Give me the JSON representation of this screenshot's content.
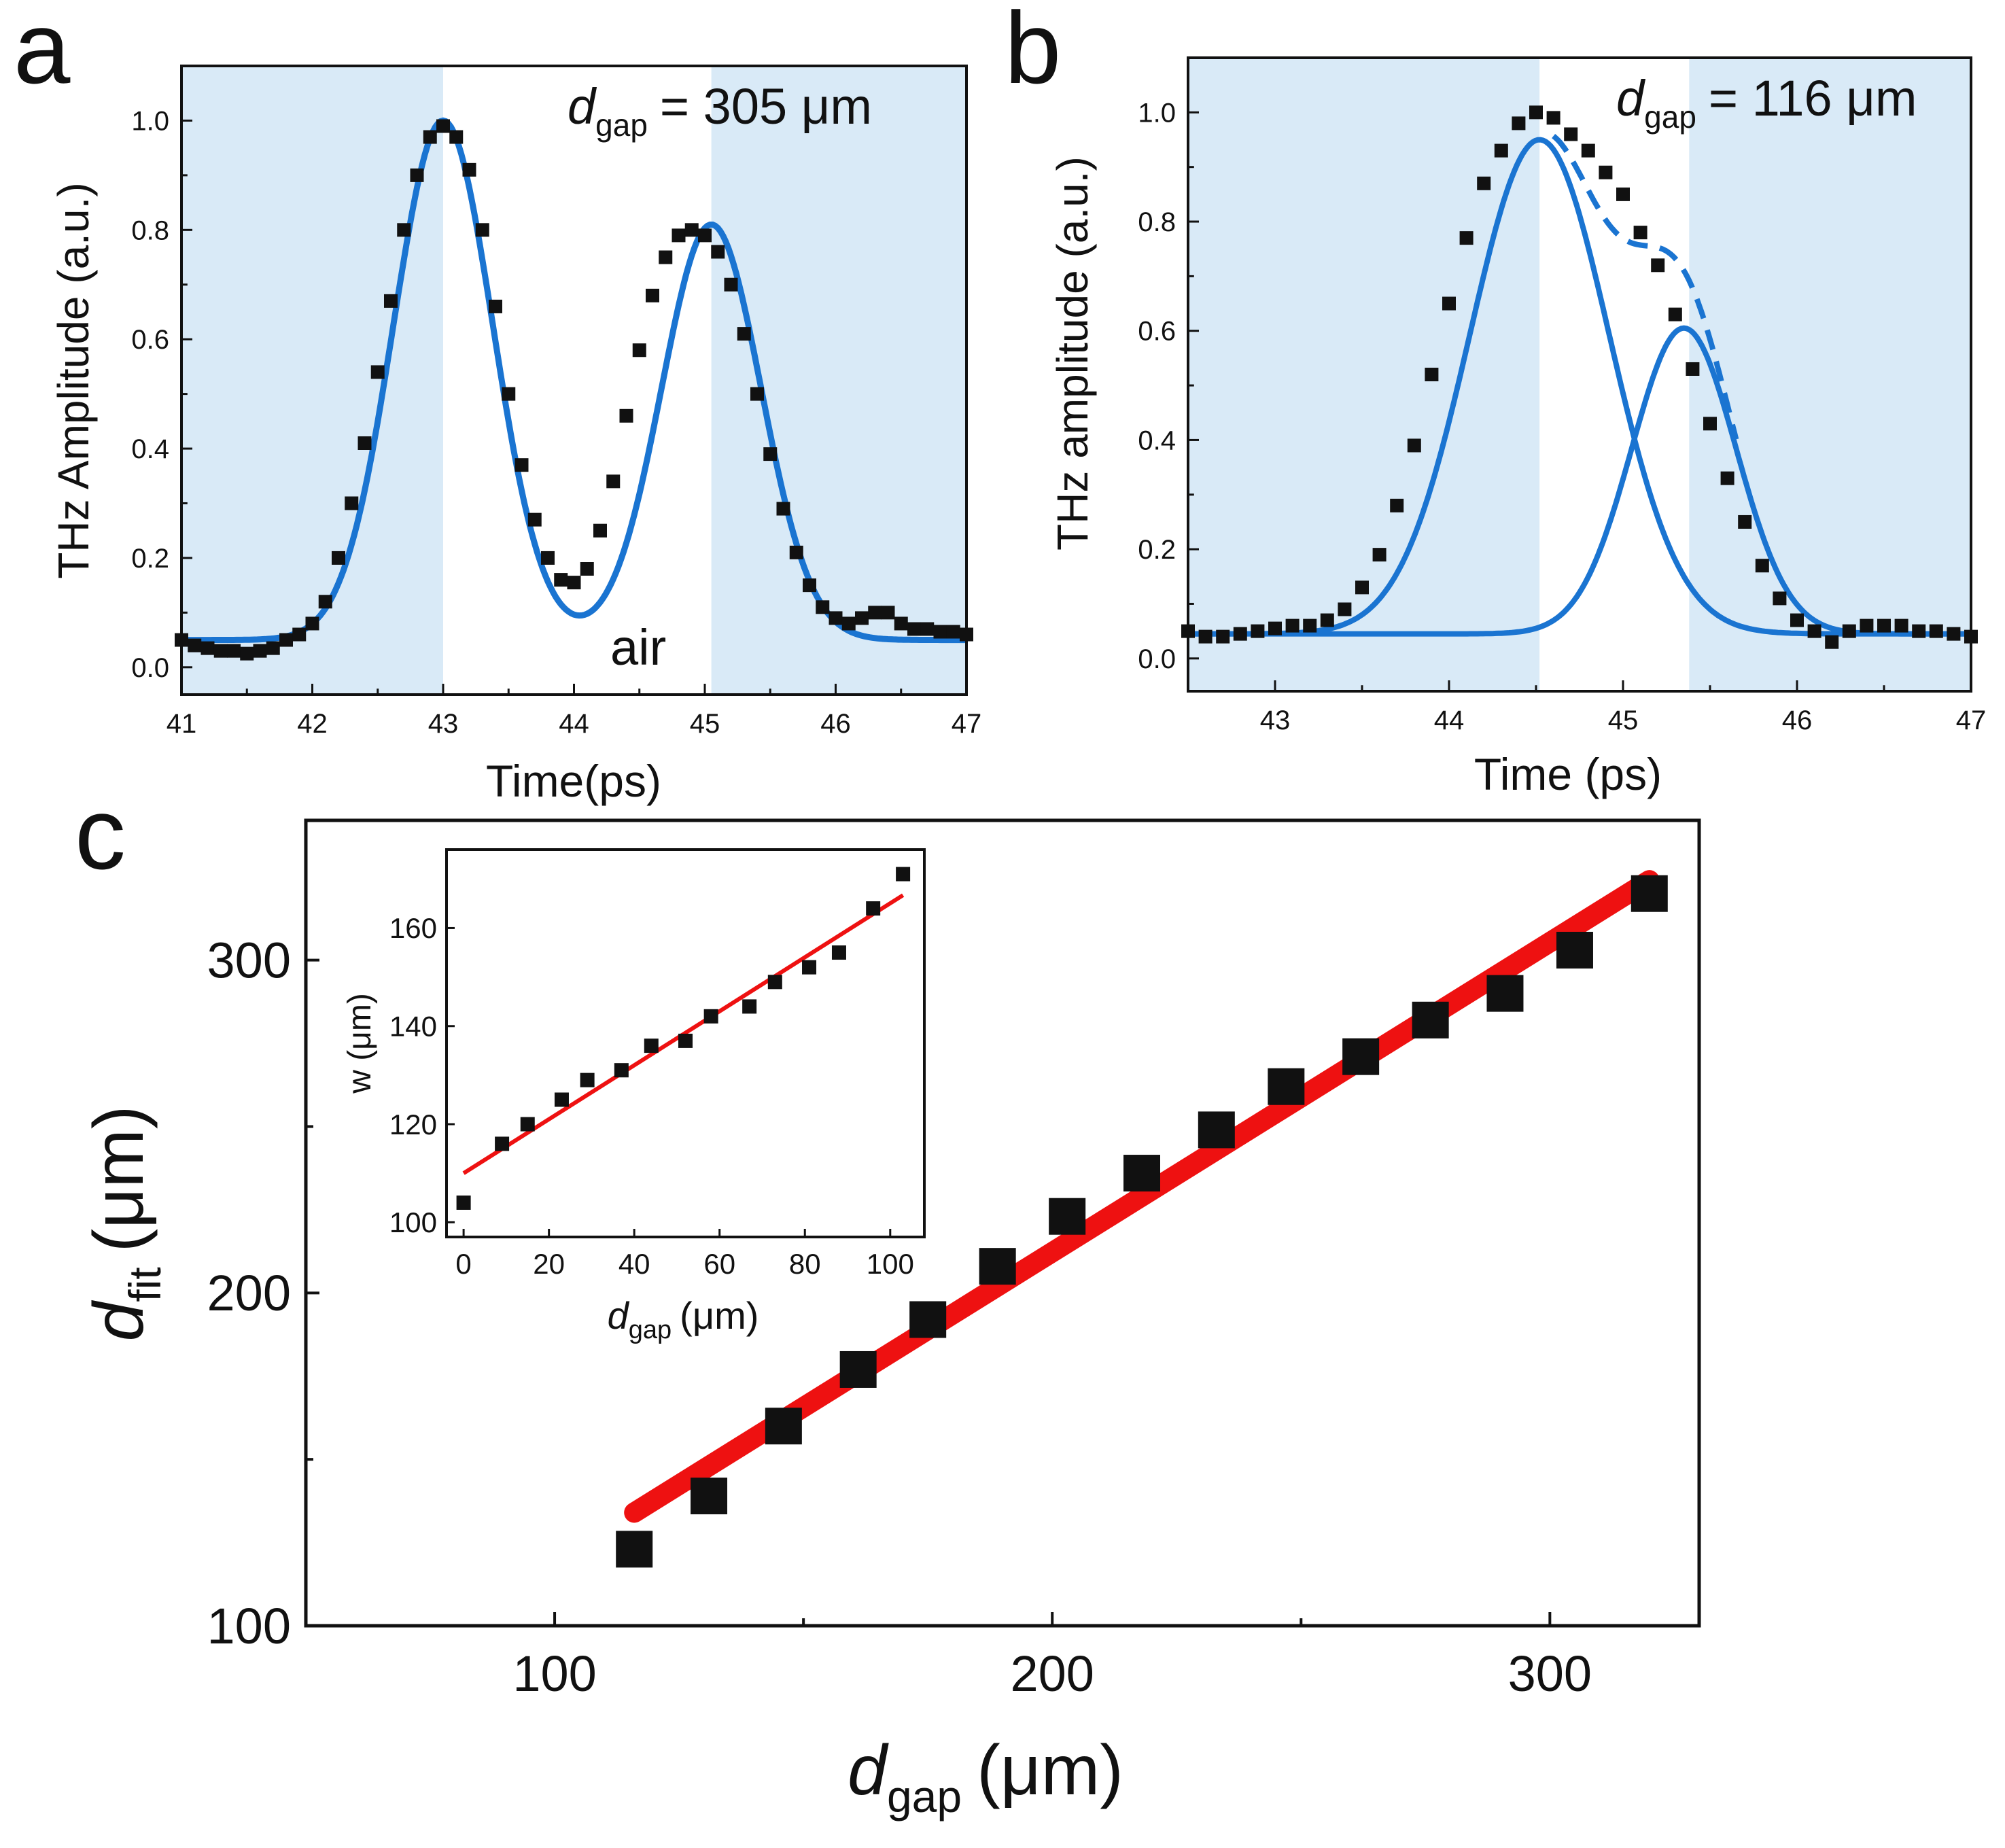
{
  "colors": {
    "shade": "#d9eaf7",
    "fit_blue": "#1a74d1",
    "fit_red": "#ee1111",
    "marker": "#111111",
    "axis": "#111111"
  },
  "chart_data": [
    {
      "panel": "a",
      "type": "scatter",
      "panel_label": "a",
      "annotation": {
        "symbol": "d",
        "subscript": "gap",
        "value": "= 305  μm"
      },
      "region_label": "air",
      "xlabel": "Time(ps)",
      "ylabel": "THz Amplitude (a.u.)",
      "xlim": [
        41,
        47
      ],
      "ylim": [
        -0.05,
        1.1
      ],
      "xticks": [
        41,
        42,
        43,
        44,
        45,
        46,
        47
      ],
      "xtick_labels": [
        "41",
        "42",
        "43",
        "44",
        "45",
        "46",
        "47"
      ],
      "yticks": [
        0.0,
        0.2,
        0.4,
        0.6,
        0.8,
        1.0
      ],
      "ytick_labels": [
        "0.0",
        "0.2",
        "0.4",
        "0.6",
        "0.8",
        "1.0"
      ],
      "shaded_x_ranges": [
        [
          41,
          43.0
        ],
        [
          45.05,
          47
        ]
      ],
      "markers": {
        "x": [
          41.0,
          41.1,
          41.2,
          41.3,
          41.4,
          41.5,
          41.6,
          41.7,
          41.8,
          41.9,
          42.0,
          42.1,
          42.2,
          42.3,
          42.4,
          42.5,
          42.6,
          42.7,
          42.8,
          42.9,
          43.0,
          43.1,
          43.2,
          43.3,
          43.4,
          43.5,
          43.6,
          43.7,
          43.8,
          43.9,
          44.0,
          44.1,
          44.2,
          44.3,
          44.4,
          44.5,
          44.6,
          44.7,
          44.8,
          44.9,
          45.0,
          45.1,
          45.2,
          45.3,
          45.4,
          45.5,
          45.6,
          45.7,
          45.8,
          45.9,
          46.0,
          46.1,
          46.2,
          46.3,
          46.4,
          46.5,
          46.6,
          46.7,
          46.8,
          46.9,
          47.0
        ],
        "y": [
          0.05,
          0.04,
          0.035,
          0.03,
          0.03,
          0.025,
          0.03,
          0.035,
          0.05,
          0.06,
          0.08,
          0.12,
          0.2,
          0.3,
          0.41,
          0.54,
          0.67,
          0.8,
          0.9,
          0.97,
          0.99,
          0.97,
          0.91,
          0.8,
          0.66,
          0.5,
          0.37,
          0.27,
          0.2,
          0.16,
          0.155,
          0.18,
          0.25,
          0.34,
          0.46,
          0.58,
          0.68,
          0.75,
          0.79,
          0.8,
          0.79,
          0.76,
          0.7,
          0.61,
          0.5,
          0.39,
          0.29,
          0.21,
          0.15,
          0.11,
          0.09,
          0.08,
          0.09,
          0.1,
          0.1,
          0.08,
          0.07,
          0.07,
          0.065,
          0.065,
          0.06
        ]
      },
      "fit_curve": {
        "baseline": 0.05,
        "peaks": [
          {
            "amplitude": 0.95,
            "center": 43.0,
            "sigma": 0.38
          },
          {
            "amplitude": 0.76,
            "center": 45.05,
            "sigma": 0.38
          }
        ]
      }
    },
    {
      "panel": "b",
      "type": "scatter",
      "panel_label": "b",
      "annotation": {
        "symbol": "d",
        "subscript": "gap",
        "value": "= 116  μm"
      },
      "xlabel": "Time (ps)",
      "ylabel": "THz amplitude (a.u.)",
      "xlim": [
        42.5,
        47
      ],
      "ylim": [
        -0.06,
        1.1
      ],
      "xticks": [
        43,
        44,
        45,
        46,
        47
      ],
      "xtick_labels": [
        "43",
        "44",
        "45",
        "46",
        "47"
      ],
      "yticks": [
        0.0,
        0.2,
        0.4,
        0.6,
        0.8,
        1.0
      ],
      "ytick_labels": [
        "0.0",
        "0.2",
        "0.4",
        "0.6",
        "0.8",
        "1.0"
      ],
      "shaded_x_ranges": [
        [
          42.5,
          44.52
        ],
        [
          45.38,
          47
        ]
      ],
      "markers": {
        "x": [
          42.5,
          42.6,
          42.7,
          42.8,
          42.9,
          43.0,
          43.1,
          43.2,
          43.3,
          43.4,
          43.5,
          43.6,
          43.7,
          43.8,
          43.9,
          44.0,
          44.1,
          44.2,
          44.3,
          44.4,
          44.5,
          44.6,
          44.7,
          44.8,
          44.9,
          45.0,
          45.1,
          45.2,
          45.3,
          45.4,
          45.5,
          45.6,
          45.7,
          45.8,
          45.9,
          46.0,
          46.1,
          46.2,
          46.3,
          46.4,
          46.5,
          46.6,
          46.7,
          46.8,
          46.9,
          47.0
        ],
        "y": [
          0.05,
          0.04,
          0.04,
          0.045,
          0.05,
          0.055,
          0.06,
          0.06,
          0.07,
          0.09,
          0.13,
          0.19,
          0.28,
          0.39,
          0.52,
          0.65,
          0.77,
          0.87,
          0.93,
          0.98,
          1.0,
          0.99,
          0.96,
          0.93,
          0.89,
          0.85,
          0.78,
          0.72,
          0.63,
          0.53,
          0.43,
          0.33,
          0.25,
          0.17,
          0.11,
          0.07,
          0.05,
          0.03,
          0.05,
          0.06,
          0.06,
          0.06,
          0.05,
          0.05,
          0.045,
          0.04
        ]
      },
      "fit_components": [
        {
          "amplitude": 0.905,
          "center": 44.52,
          "sigma": 0.4,
          "baseline": 0.045
        },
        {
          "amplitude": 0.56,
          "center": 45.35,
          "sigma": 0.3,
          "baseline": 0.045
        }
      ],
      "sum_curve_x_range": [
        44.6,
        45.65
      ]
    },
    {
      "panel": "c",
      "type": "scatter",
      "panel_label": "c",
      "xlabel": {
        "symbol": "d",
        "subscript": "gap",
        "unit": "(μm)"
      },
      "ylabel": {
        "symbol": "d",
        "subscript": "fit",
        "unit": "(μm)"
      },
      "xlim": [
        50,
        330
      ],
      "ylim": [
        100,
        342
      ],
      "xticks": [
        100,
        200,
        300
      ],
      "xtick_labels": [
        "100",
        "200",
        "300"
      ],
      "yticks": [
        100,
        200,
        300
      ],
      "ytick_labels": [
        "100",
        "200",
        "300"
      ],
      "points": {
        "x": [
          116,
          131,
          146,
          161,
          175,
          189,
          203,
          218,
          233,
          247,
          262,
          276,
          291,
          305,
          320
        ],
        "y": [
          123,
          139,
          160,
          177,
          192,
          208,
          223,
          236,
          249,
          262,
          271,
          282,
          290,
          303,
          320
        ]
      },
      "fit_line": {
        "x": [
          116,
          320
        ],
        "y": [
          134,
          324
        ]
      }
    },
    {
      "panel": "c-inset",
      "type": "scatter",
      "xlabel": {
        "symbol": "d",
        "subscript": "gap",
        "unit": "(μm)"
      },
      "ylabel": "w (μm)",
      "xlim": [
        -4,
        108
      ],
      "ylim": [
        97,
        176
      ],
      "xticks": [
        0,
        20,
        40,
        60,
        80,
        100
      ],
      "xtick_labels": [
        "0",
        "20",
        "40",
        "60",
        "80",
        "100"
      ],
      "yticks": [
        100,
        120,
        140,
        160
      ],
      "ytick_labels": [
        "100",
        "120",
        "140",
        "160"
      ],
      "points": {
        "x": [
          0,
          9,
          15,
          23,
          29,
          37,
          44,
          52,
          58,
          67,
          73,
          81,
          88,
          96,
          103
        ],
        "y": [
          104,
          116,
          120,
          125,
          129,
          131,
          136,
          137,
          142,
          144,
          149,
          152,
          155,
          164,
          171
        ]
      },
      "fit_line": {
        "x": [
          0,
          103
        ],
        "y": [
          110,
          166.7
        ]
      }
    }
  ]
}
